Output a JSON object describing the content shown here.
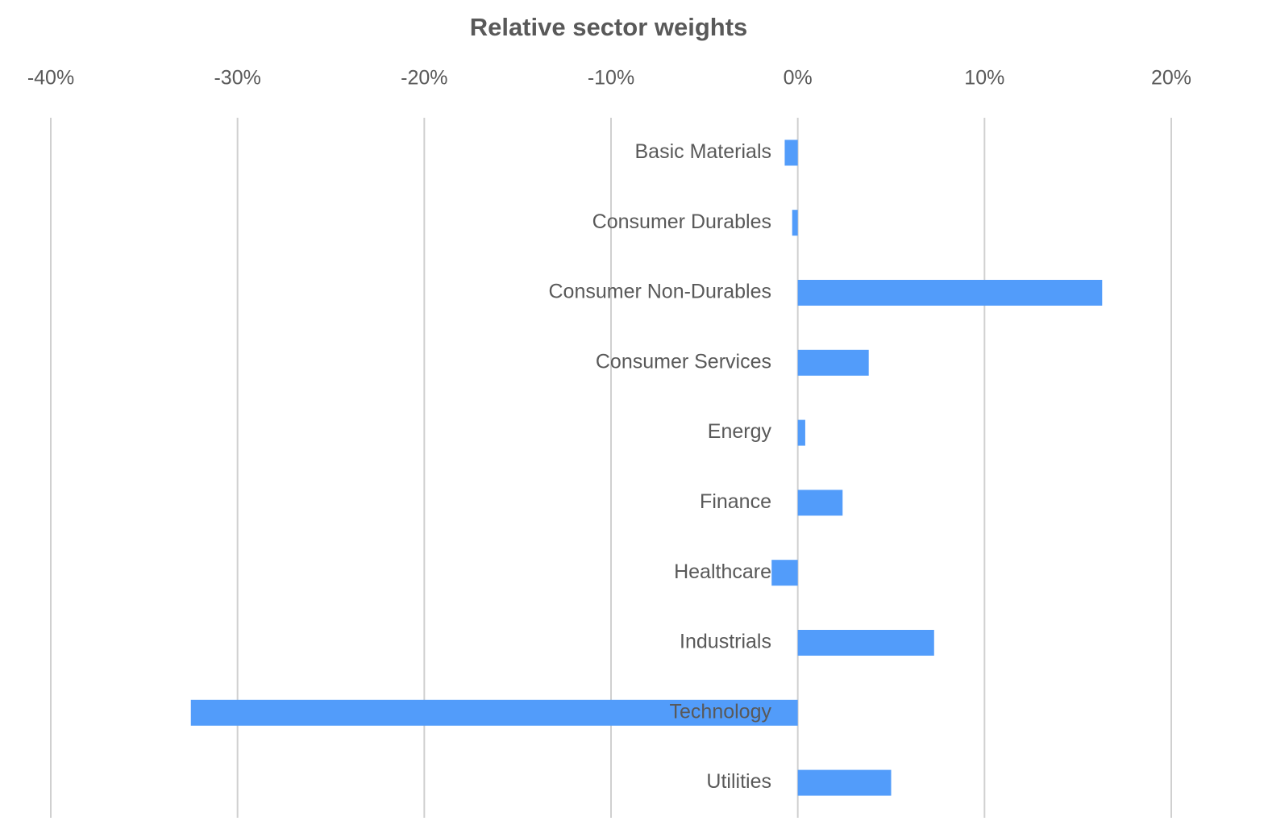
{
  "chart_data": {
    "type": "barh",
    "title": "Relative sector weights",
    "categories": [
      "Basic Materials",
      "Consumer Durables",
      "Consumer Non-Durables",
      "Consumer Services",
      "Energy",
      "Finance",
      "Healthcare",
      "Industrials",
      "Technology",
      "Utilities"
    ],
    "values": [
      -0.7,
      -0.3,
      16.3,
      3.8,
      0.4,
      2.4,
      -1.4,
      7.3,
      -32.5,
      5.0
    ],
    "color": "#529cfa",
    "xlim": [
      -40,
      20
    ],
    "xticks": [
      {
        "value": -40,
        "label": "-40%"
      },
      {
        "value": -30,
        "label": "-30%"
      },
      {
        "value": -20,
        "label": "-20%"
      },
      {
        "value": -10,
        "label": "-10%"
      },
      {
        "value": 0,
        "label": "0%"
      },
      {
        "value": 10,
        "label": "10%"
      },
      {
        "value": 20,
        "label": "20%"
      }
    ],
    "grid": true
  }
}
